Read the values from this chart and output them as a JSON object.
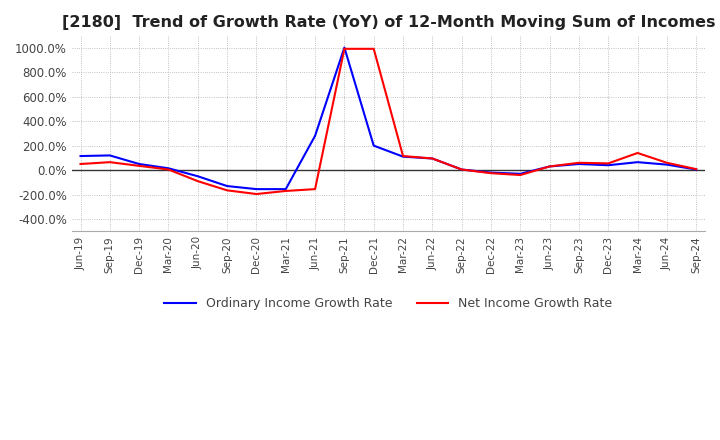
{
  "title": "[2180]  Trend of Growth Rate (YoY) of 12-Month Moving Sum of Incomes",
  "title_fontsize": 11.5,
  "ylim": [
    -500,
    1100
  ],
  "yticks": [
    -400,
    -200,
    0,
    200,
    400,
    600,
    800,
    1000
  ],
  "background_color": "#ffffff",
  "grid_color": "#b0b0b0",
  "legend_labels": [
    "Ordinary Income Growth Rate",
    "Net Income Growth Rate"
  ],
  "ordinary_color": "#0000ff",
  "net_color": "#ff0000",
  "x_labels": [
    "Jun-19",
    "Sep-19",
    "Dec-19",
    "Mar-20",
    "Jun-20",
    "Sep-20",
    "Dec-20",
    "Mar-21",
    "Jun-21",
    "Sep-21",
    "Dec-21",
    "Mar-22",
    "Jun-22",
    "Sep-22",
    "Dec-22",
    "Mar-23",
    "Jun-23",
    "Sep-23",
    "Dec-23",
    "Mar-24",
    "Jun-24",
    "Sep-24"
  ],
  "ordinary_income": [
    115,
    120,
    50,
    15,
    -50,
    -130,
    -155,
    -155,
    280,
    1000,
    200,
    110,
    95,
    5,
    -20,
    -30,
    30,
    50,
    40,
    65,
    45,
    5
  ],
  "net_income": [
    50,
    65,
    35,
    5,
    -90,
    -165,
    -195,
    -170,
    -155,
    990,
    990,
    115,
    95,
    5,
    -25,
    -40,
    30,
    60,
    55,
    140,
    60,
    8
  ]
}
